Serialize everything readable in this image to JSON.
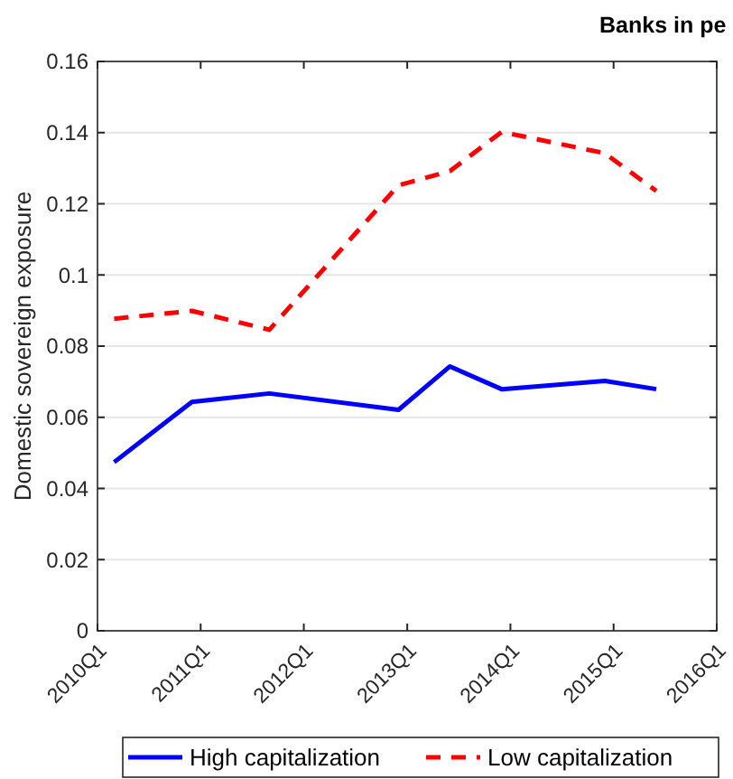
{
  "chart_data": {
    "type": "line",
    "title": "Banks in pe",
    "ylabel": "Domestic sovereign exposure",
    "x": [
      "2010-03",
      "2010-12",
      "2011-09",
      "2012-12",
      "2013-06",
      "2013-12",
      "2014-12",
      "2015-06"
    ],
    "series": [
      {
        "name": "High capitalization",
        "color": "#0000ff",
        "line_style": "solid",
        "values": [
          0.0474,
          0.0643,
          0.0667,
          0.0621,
          0.0743,
          0.0679,
          0.0702,
          0.0679
        ]
      },
      {
        "name": "Low capitalization",
        "color": "#ff0000",
        "line_style": "dashed",
        "values": [
          0.0877,
          0.0899,
          0.0846,
          0.1252,
          0.1292,
          0.1402,
          0.1342,
          0.1236
        ]
      }
    ],
    "xlim": [
      "2010-01",
      "2016-01"
    ],
    "xticks": [
      {
        "value": "2010-01",
        "label": "2010Q1"
      },
      {
        "value": "2011-01",
        "label": "2011Q1"
      },
      {
        "value": "2012-01",
        "label": "2012Q1"
      },
      {
        "value": "2013-01",
        "label": "2013Q1"
      },
      {
        "value": "2014-01",
        "label": "2014Q1"
      },
      {
        "value": "2015-01",
        "label": "2015Q1"
      },
      {
        "value": "2016-01",
        "label": "2016Q1"
      }
    ],
    "ylim": [
      0,
      0.16
    ],
    "yticks": [
      0,
      0.02,
      0.04,
      0.06,
      0.08,
      0.1,
      0.12,
      0.14,
      0.16
    ],
    "grid": "y",
    "legend": "bottom"
  }
}
